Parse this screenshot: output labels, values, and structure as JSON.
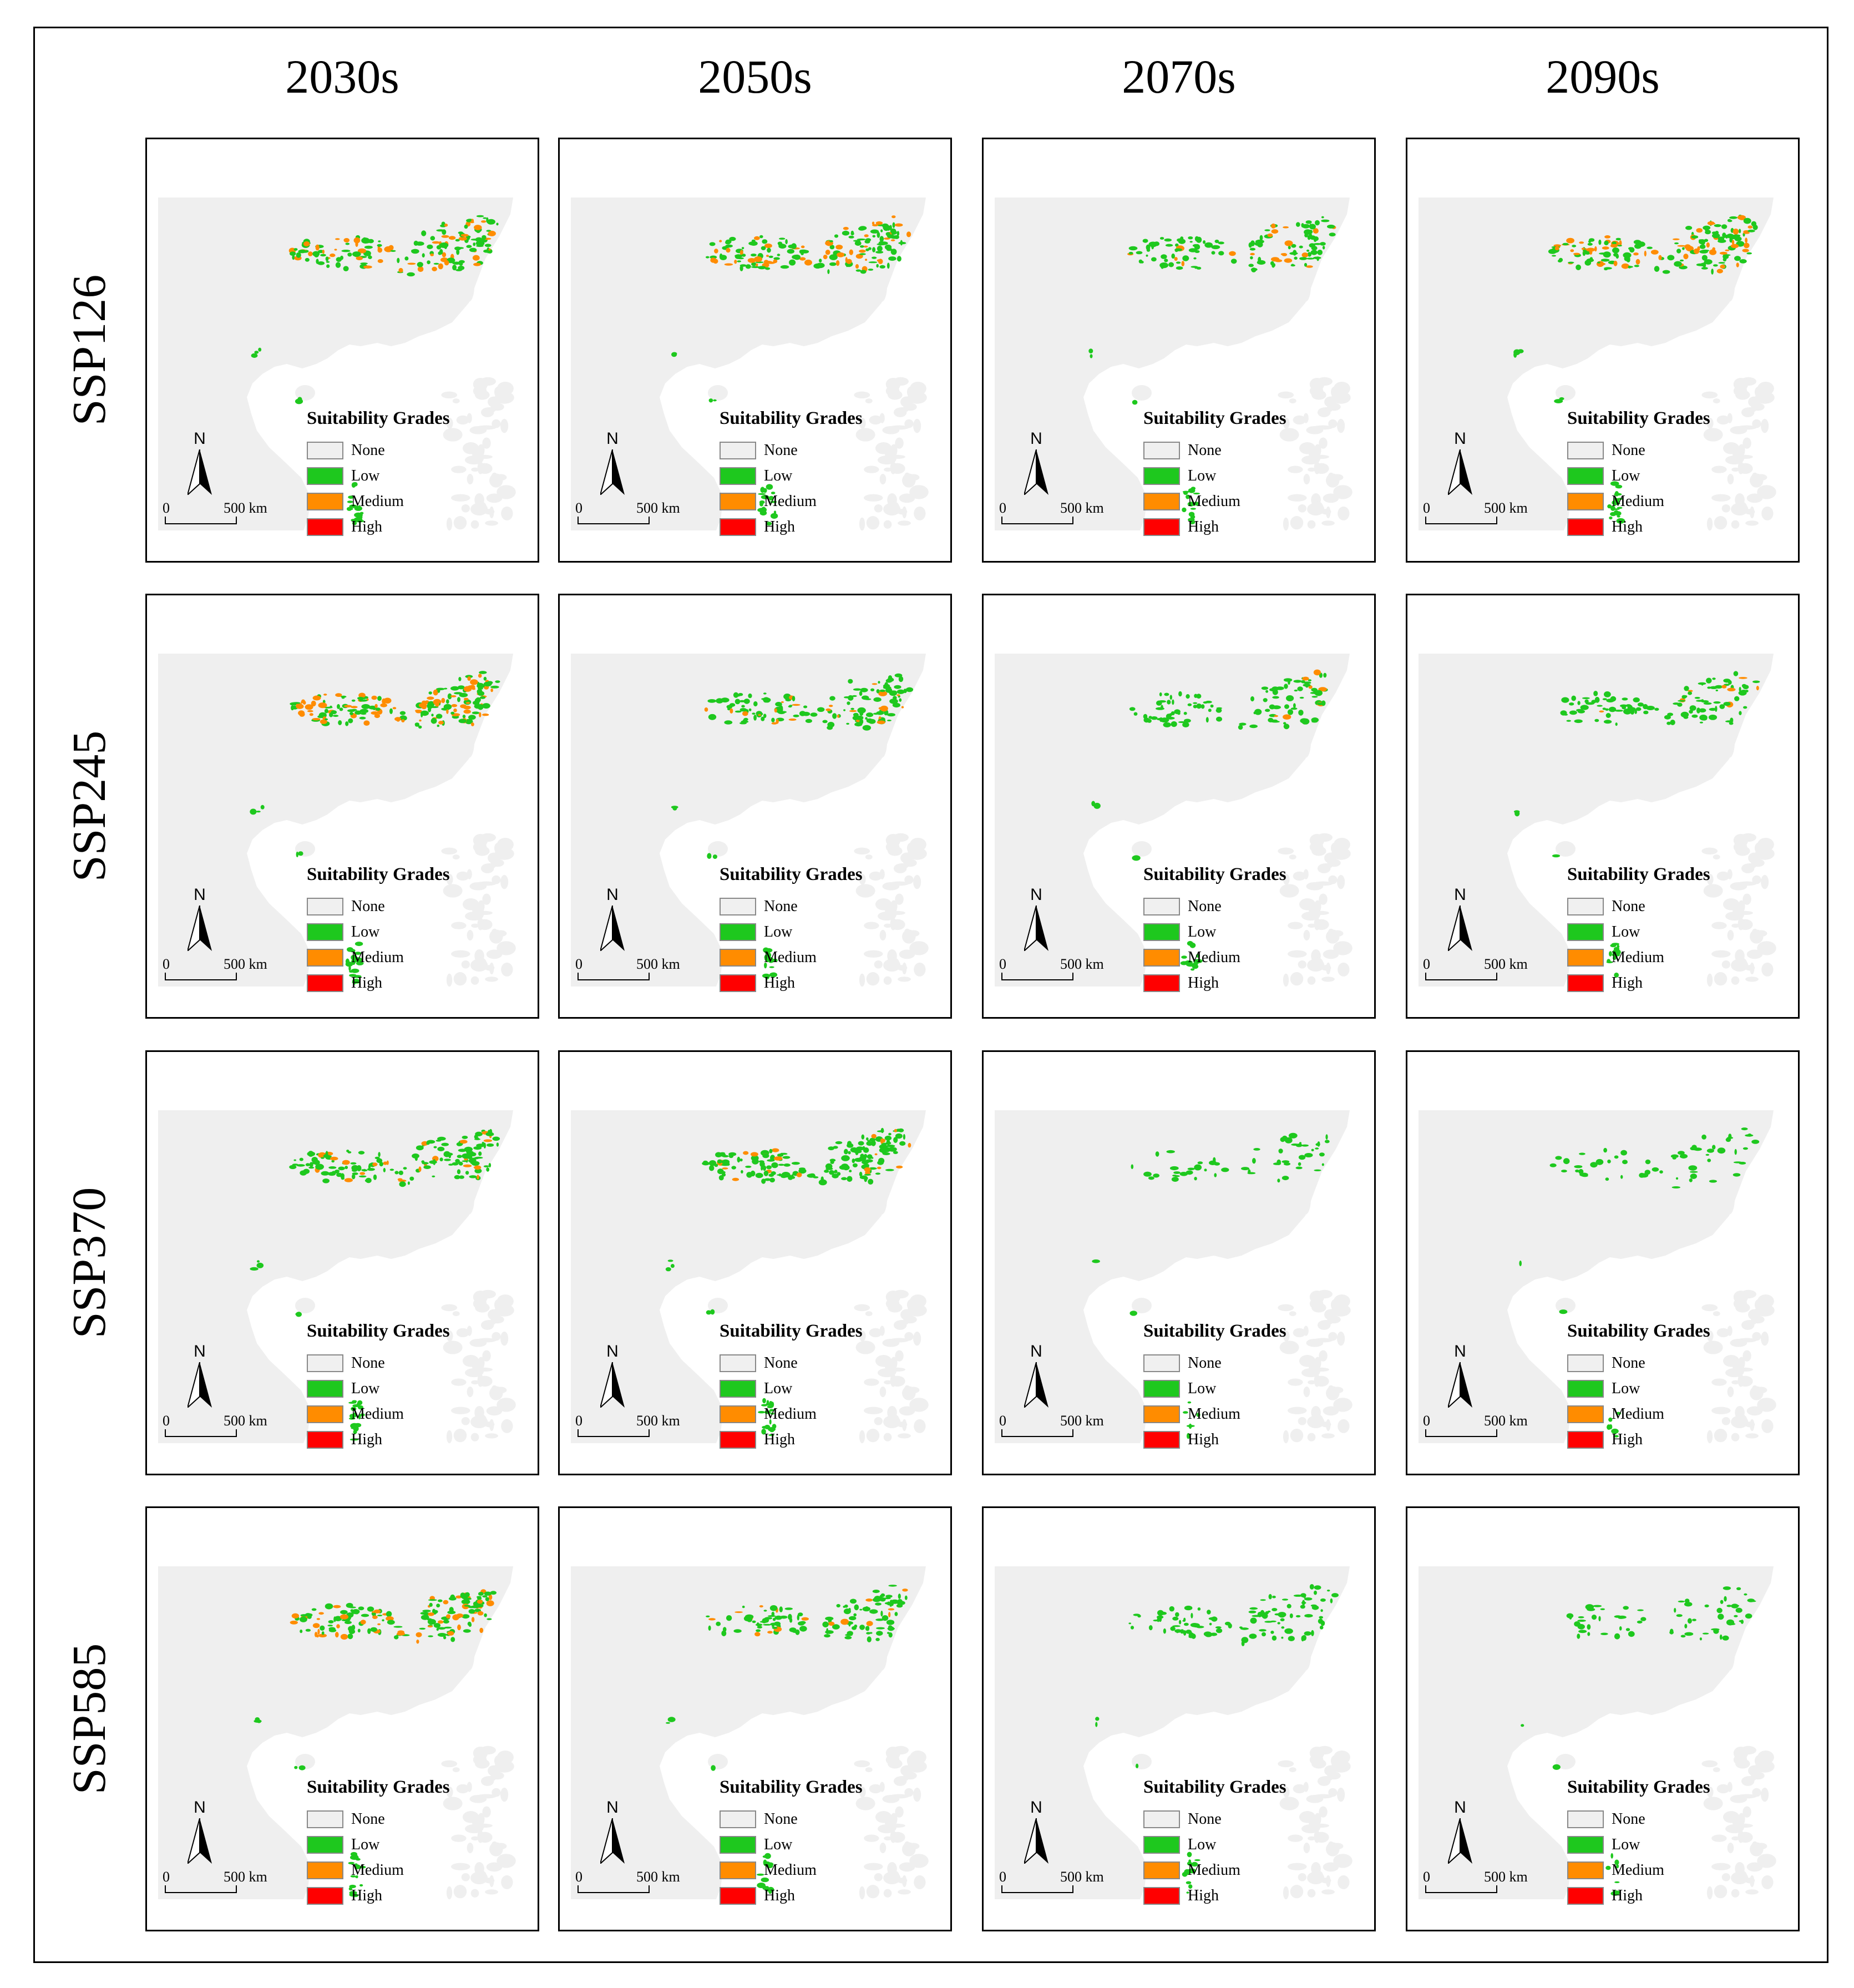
{
  "columns": [
    "2030s",
    "2050s",
    "2070s",
    "2090s"
  ],
  "rows": [
    "SSP126",
    "SSP245",
    "SSP370",
    "SSP585"
  ],
  "legend": {
    "title": "Suitability Grades",
    "items": [
      {
        "label": "None",
        "color": "#f0f0f0"
      },
      {
        "label": "Low",
        "color": "#1ec81e"
      },
      {
        "label": "Medium",
        "color": "#ff8c00"
      },
      {
        "label": "High",
        "color": "#ff0000"
      }
    ]
  },
  "north_label": "N",
  "scale": {
    "zero": "0",
    "distance": "500 km"
  },
  "colors": {
    "land": "#efefef",
    "low": "#1ec81e",
    "medium": "#ff8c00",
    "high": "#ff0000"
  },
  "suitability": [
    [
      {
        "low": 0.9,
        "medium": 0.25
      },
      {
        "low": 0.95,
        "medium": 0.3
      },
      {
        "low": 0.7,
        "medium": 0.2
      },
      {
        "low": 0.95,
        "medium": 0.3
      }
    ],
    [
      {
        "low": 1.0,
        "medium": 0.45
      },
      {
        "low": 0.8,
        "medium": 0.15
      },
      {
        "low": 0.6,
        "medium": 0.05
      },
      {
        "low": 0.6,
        "medium": 0.05
      }
    ],
    [
      {
        "low": 0.9,
        "medium": 0.15
      },
      {
        "low": 0.95,
        "medium": 0.15
      },
      {
        "low": 0.3,
        "medium": 0.0
      },
      {
        "low": 0.3,
        "medium": 0.0
      }
    ],
    [
      {
        "low": 0.9,
        "medium": 0.35
      },
      {
        "low": 0.7,
        "medium": 0.15
      },
      {
        "low": 0.6,
        "medium": 0.0
      },
      {
        "low": 0.35,
        "medium": 0.0
      }
    ]
  ]
}
